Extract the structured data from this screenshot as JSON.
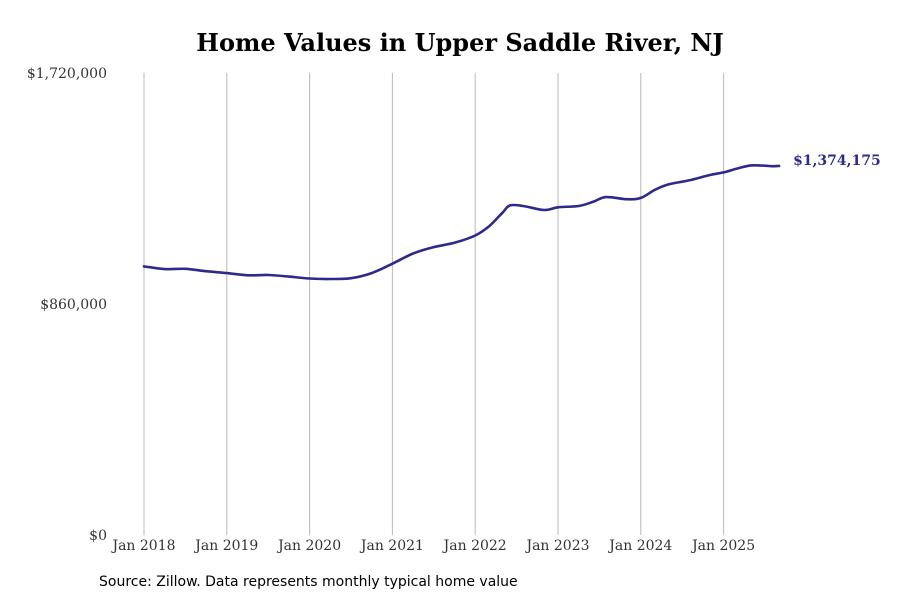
{
  "chart_data": {
    "type": "line",
    "title": "Home Values in Upper Saddle River, NJ",
    "xlabel": "",
    "ylabel": "",
    "ylim": [
      0,
      1720000
    ],
    "y_ticks": [
      0,
      860000,
      1720000
    ],
    "y_tick_labels": [
      "$0",
      "$860,000",
      "$1,720,000"
    ],
    "x_ticks": [
      2018,
      2019,
      2020,
      2021,
      2022,
      2023,
      2024,
      2025
    ],
    "x_tick_labels": [
      "Jan 2018",
      "Jan 2019",
      "Jan 2020",
      "Jan 2021",
      "Jan 2022",
      "Jan 2023",
      "Jan 2024",
      "Jan 2025"
    ],
    "grid": "vertical",
    "series": [
      {
        "name": "Typical home value",
        "color": "#2e2a8a",
        "x": [
          2018.0,
          2018.25,
          2018.5,
          2018.75,
          2019.0,
          2019.25,
          2019.5,
          2019.75,
          2020.0,
          2020.25,
          2020.5,
          2020.75,
          2021.0,
          2021.25,
          2021.5,
          2021.75,
          2022.0,
          2022.17,
          2022.33,
          2022.42,
          2022.58,
          2022.83,
          2023.0,
          2023.25,
          2023.42,
          2023.58,
          2023.83,
          2024.0,
          2024.17,
          2024.33,
          2024.58,
          2024.83,
          2025.0,
          2025.17,
          2025.33,
          2025.5,
          2025.58,
          2025.67
        ],
        "values": [
          1000000,
          990000,
          991000,
          982000,
          975000,
          967000,
          968000,
          962000,
          955000,
          953000,
          956000,
          975000,
          1010000,
          1048000,
          1072000,
          1088000,
          1115000,
          1150000,
          1200000,
          1227000,
          1225000,
          1210000,
          1220000,
          1225000,
          1240000,
          1258000,
          1250000,
          1255000,
          1285000,
          1305000,
          1320000,
          1340000,
          1350000,
          1365000,
          1376000,
          1375000,
          1373000,
          1374175
        ]
      }
    ],
    "end_label": "$1,374,175"
  },
  "source_text": "Source: Zillow. Data represents monthly typical home value"
}
